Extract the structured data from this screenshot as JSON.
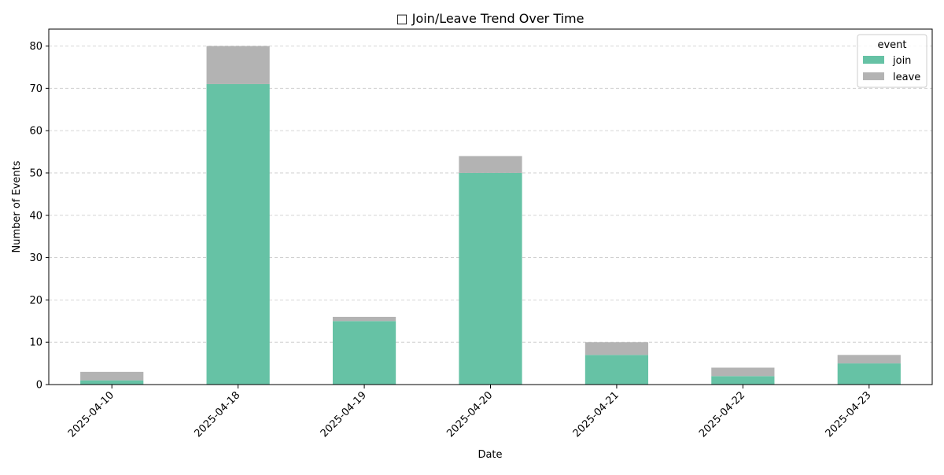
{
  "chart_data": {
    "type": "bar",
    "stacked": true,
    "title": "□ Join/Leave Trend Over Time",
    "xlabel": "Date",
    "ylabel": "Number of Events",
    "categories": [
      "2025-04-10",
      "2025-04-18",
      "2025-04-19",
      "2025-04-20",
      "2025-04-21",
      "2025-04-22",
      "2025-04-23"
    ],
    "series": [
      {
        "name": "join",
        "values": [
          1,
          71,
          15,
          50,
          7,
          2,
          5
        ],
        "color": "#66c2a5"
      },
      {
        "name": "leave",
        "values": [
          2,
          9,
          1,
          4,
          3,
          2,
          2
        ],
        "color": "#b3b3b3"
      }
    ],
    "ylim": [
      0,
      84
    ],
    "yticks": [
      0,
      10,
      20,
      30,
      40,
      50,
      60,
      70,
      80
    ],
    "grid": "y-dashed",
    "legend": {
      "title": "event",
      "position": "top-right"
    }
  }
}
